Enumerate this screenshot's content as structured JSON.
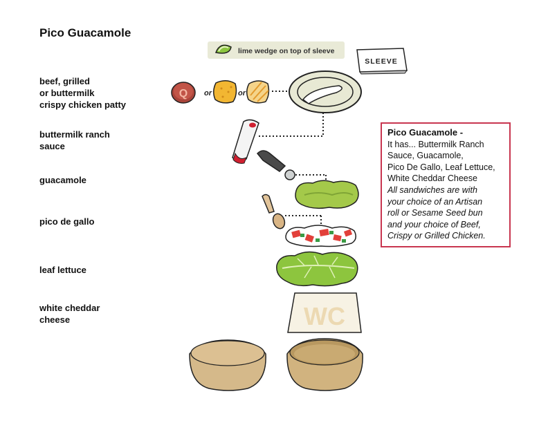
{
  "title": "Pico Guacamole",
  "labels": {
    "patty": [
      "beef, grilled",
      "or buttermilk",
      "crispy chicken patty"
    ],
    "sauce": [
      "buttermilk ranch",
      "sauce"
    ],
    "guacamole": "guacamole",
    "pico": "pico de gallo",
    "lettuce": "leaf lettuce",
    "cheese": [
      "white cheddar",
      "cheese"
    ]
  },
  "lime_note": "lime wedge on top of sleeve",
  "sleeve_label": "SLEEVE",
  "patty_or_1": "or",
  "patty_or_2": "or",
  "patty_badge": "Q",
  "cheese_badge": "WC",
  "info": {
    "heading": "Pico Guacamole -",
    "lines": [
      "It has... Buttermilk Ranch",
      "Sauce, Guacamole,",
      "Pico De Gallo, Leaf Lettuce,",
      "White Cheddar Cheese"
    ],
    "italic_lines": [
      "All sandwiches are with",
      "your choice of an Artisan",
      "roll or Sesame Seed bun",
      "and your choice of Beef,",
      "Crispy or Grilled Chicken."
    ]
  },
  "colors": {
    "accent": "#c8354f",
    "lime": "#8cc63f",
    "lettuce": "#8dc53e",
    "guac": "#a4c94a",
    "bun": "#dcc092"
  }
}
